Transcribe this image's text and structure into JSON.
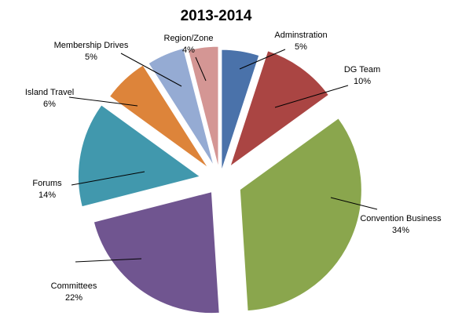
{
  "chart_data": {
    "type": "pie",
    "title": "2013-2014",
    "exploded": true,
    "start_angle_deg": 0,
    "direction": "clockwise",
    "slices": [
      {
        "name": "Adminstration",
        "label": "5%",
        "value": 5,
        "color": "#4a72aa"
      },
      {
        "name": "DG Team",
        "label": "10%",
        "value": 10,
        "color": "#aa4543"
      },
      {
        "name": "Convention Business",
        "label": "34%",
        "value": 34,
        "color": "#8aa64d"
      },
      {
        "name": "Committees",
        "label": "22%",
        "value": 22,
        "color": "#705590"
      },
      {
        "name": "Forums",
        "label": "14%",
        "value": 14,
        "color": "#4198ad"
      },
      {
        "name": "Island Travel",
        "label": "6%",
        "value": 6,
        "color": "#dd843a"
      },
      {
        "name": "Membership Drives",
        "label": "5%",
        "value": 5,
        "color": "#95abd3"
      },
      {
        "name": "Region/Zone",
        "label": "4%",
        "value": 4,
        "color": "#d49694"
      }
    ]
  }
}
